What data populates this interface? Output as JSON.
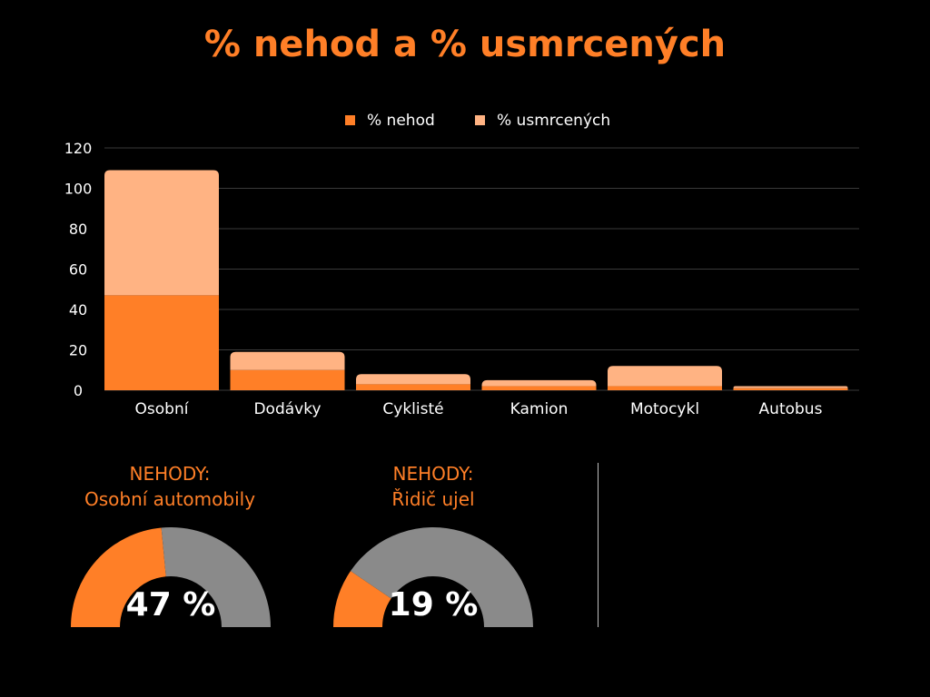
{
  "colors": {
    "background": "#000000",
    "accent": "#ff7f27",
    "accent_light": "#ffb383",
    "gauge_rest": "#8a8a8a",
    "grid": "#3a3a3a",
    "text": "#ffffff"
  },
  "title": "% nehod a % usmrcených",
  "chart_data": {
    "type": "bar",
    "stacked": true,
    "title": "% nehod a % usmrcených",
    "xlabel": "",
    "ylabel": "",
    "categories": [
      "Osobní",
      "Dodávky",
      "Cyklisté",
      "Kamion",
      "Motocykl",
      "Autobus"
    ],
    "series": [
      {
        "name": "% nehod",
        "color": "#ff7f27",
        "values": [
          47,
          10,
          3,
          2,
          2,
          1
        ]
      },
      {
        "name": "% usmrcených",
        "color": "#ffb383",
        "values": [
          62,
          9,
          5,
          3,
          10,
          1
        ]
      }
    ],
    "ylim": [
      0,
      120
    ],
    "yticks": [
      "0",
      "20",
      "40",
      "60",
      "80",
      "100",
      "120"
    ],
    "grid": true,
    "legend_position": "top-center"
  },
  "gauges": [
    {
      "heading_line1": "NEHODY:",
      "heading_line2": "Osobní automobily",
      "value_label": "47 %",
      "fraction": 0.47
    },
    {
      "heading_line1": "NEHODY:",
      "heading_line2": "Řidič ujel",
      "value_label": "19 %",
      "fraction": 0.19
    }
  ]
}
